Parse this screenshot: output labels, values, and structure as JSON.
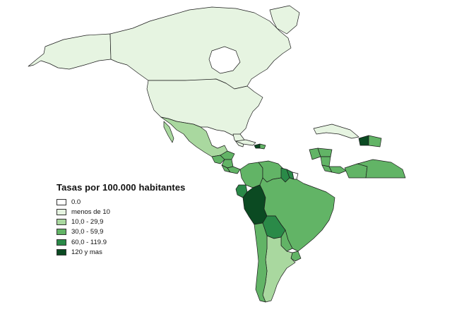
{
  "legend": {
    "title": "Tasas por 100.000 habitantes",
    "classes": [
      {
        "label": "0.0",
        "color": "#ffffff"
      },
      {
        "label": "menos de 10",
        "color": "#e6f4e1"
      },
      {
        "label": "10,0 - 29,9",
        "color": "#a9d89f"
      },
      {
        "label": "30,0 - 59,9",
        "color": "#62b466"
      },
      {
        "label": "60,0 - 119.9",
        "color": "#2a8a48"
      },
      {
        "label": "120 y mas",
        "color": "#0b4a22"
      }
    ]
  },
  "regions": [
    {
      "name": "Canada",
      "class": 1
    },
    {
      "name": "United States",
      "class": 1
    },
    {
      "name": "Alaska",
      "class": 1
    },
    {
      "name": "Mexico",
      "class": 2
    },
    {
      "name": "Guatemala",
      "class": 3
    },
    {
      "name": "Honduras",
      "class": 3
    },
    {
      "name": "Nicaragua",
      "class": 3
    },
    {
      "name": "Costa Rica",
      "class": 3
    },
    {
      "name": "Panama",
      "class": 3
    },
    {
      "name": "Cuba",
      "class": 1
    },
    {
      "name": "Haiti",
      "class": 5
    },
    {
      "name": "Dominican Republic",
      "class": 3
    },
    {
      "name": "Colombia",
      "class": 3
    },
    {
      "name": "Venezuela",
      "class": 3
    },
    {
      "name": "Guyana",
      "class": 4
    },
    {
      "name": "Suriname",
      "class": 4
    },
    {
      "name": "French Guiana",
      "class": 0
    },
    {
      "name": "Ecuador",
      "class": 4
    },
    {
      "name": "Peru",
      "class": 5
    },
    {
      "name": "Brazil",
      "class": 3
    },
    {
      "name": "Bolivia",
      "class": 4
    },
    {
      "name": "Paraguay",
      "class": 3
    },
    {
      "name": "Uruguay",
      "class": 3
    },
    {
      "name": "Argentina",
      "class": 2
    },
    {
      "name": "Chile",
      "class": 3
    }
  ]
}
